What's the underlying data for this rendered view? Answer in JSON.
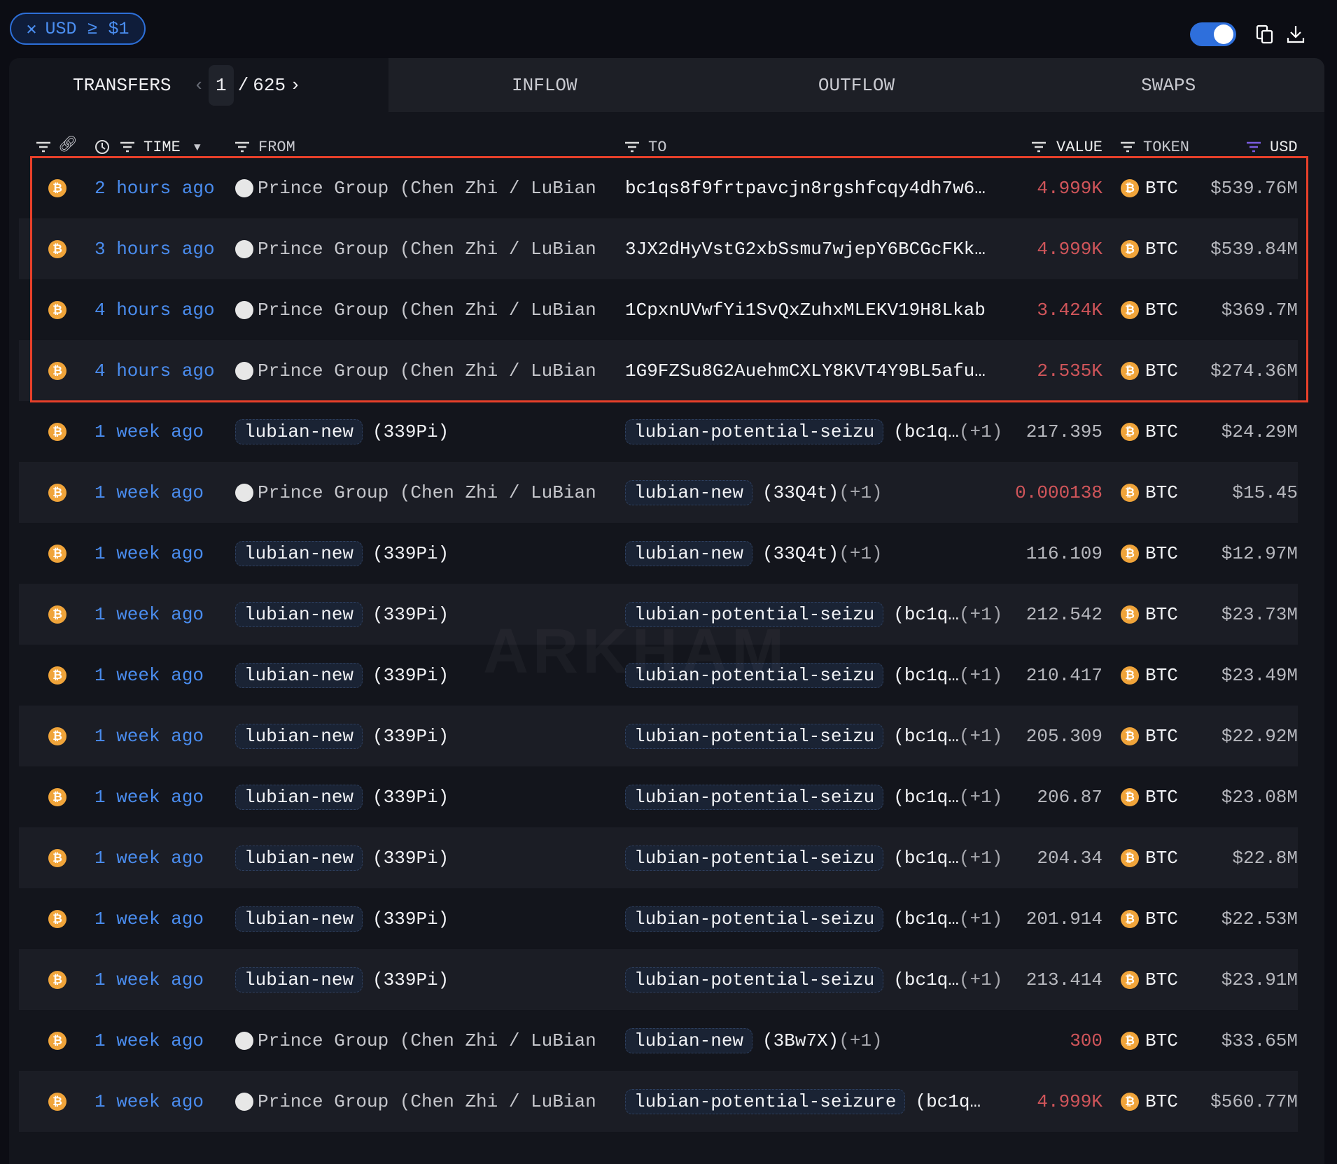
{
  "filter_chip": {
    "close_icon": "x-icon",
    "label": "USD ≥ $1"
  },
  "toolbar": {
    "toggle_on": true,
    "copy_icon": "copy-icon",
    "download_icon": "download-icon"
  },
  "tabs": {
    "transfers": "TRANSFERS",
    "page_current": "1",
    "page_sep": "/",
    "page_total": "625",
    "inflow": "INFLOW",
    "outflow": "OUTFLOW",
    "swaps": "SWAPS"
  },
  "columns": {
    "time": "TIME",
    "from": "FROM",
    "to": "TO",
    "value": "VALUE",
    "token": "TOKEN",
    "usd": "USD"
  },
  "colors": {
    "accent": "#2e6fdc",
    "negative": "#d0555a",
    "highlight_box": "#e8402a",
    "btc": "#f0a43a"
  },
  "watermark": "ARKHAM",
  "rows": [
    {
      "time": "2 hours ago",
      "from": {
        "entity": "Prince Group (Chen Zhi / LuBian",
        "avatar": true
      },
      "to": {
        "address": "bc1qs8f9frtpavcjn8rgshfcqy4dh7w6…"
      },
      "value": "4.999K",
      "value_negative": true,
      "token": "BTC",
      "usd": "$539.76M",
      "highlighted": true
    },
    {
      "time": "3 hours ago",
      "from": {
        "entity": "Prince Group (Chen Zhi / LuBian",
        "avatar": true
      },
      "to": {
        "address": "3JX2dHyVstG2xbSsmu7wjepY6BCGcFKk…"
      },
      "value": "4.999K",
      "value_negative": true,
      "token": "BTC",
      "usd": "$539.84M",
      "highlighted": true
    },
    {
      "time": "4 hours ago",
      "from": {
        "entity": "Prince Group (Chen Zhi / LuBian",
        "avatar": true
      },
      "to": {
        "address": "1CpxnUVwfYi1SvQxZuhxMLEKV19H8Lkab"
      },
      "value": "3.424K",
      "value_negative": true,
      "token": "BTC",
      "usd": "$369.7M",
      "highlighted": true
    },
    {
      "time": "4 hours ago",
      "from": {
        "entity": "Prince Group (Chen Zhi / LuBian",
        "avatar": true
      },
      "to": {
        "address": "1G9FZSu8G2AuehmCXLY8KVT4Y9BL5afu…"
      },
      "value": "2.535K",
      "value_negative": true,
      "token": "BTC",
      "usd": "$274.36M",
      "highlighted": true
    },
    {
      "time": "1 week ago",
      "from": {
        "tag": "lubian-new",
        "suffix": "(339Pi)"
      },
      "to": {
        "tag": "lubian-potential-seizu",
        "suffix": "(bc1q…",
        "plus": "(+1)"
      },
      "value": "217.395",
      "value_negative": false,
      "token": "BTC",
      "usd": "$24.29M"
    },
    {
      "time": "1 week ago",
      "from": {
        "entity": "Prince Group (Chen Zhi / LuBian",
        "avatar": true
      },
      "to": {
        "tag": "lubian-new",
        "suffix": "(33Q4t)",
        "plus": "(+1)"
      },
      "value": "0.000138",
      "value_negative": true,
      "token": "BTC",
      "usd": "$15.45"
    },
    {
      "time": "1 week ago",
      "from": {
        "tag": "lubian-new",
        "suffix": "(339Pi)"
      },
      "to": {
        "tag": "lubian-new",
        "suffix": "(33Q4t)",
        "plus": "(+1)"
      },
      "value": "116.109",
      "value_negative": false,
      "token": "BTC",
      "usd": "$12.97M"
    },
    {
      "time": "1 week ago",
      "from": {
        "tag": "lubian-new",
        "suffix": "(339Pi)"
      },
      "to": {
        "tag": "lubian-potential-seizu",
        "suffix": "(bc1q…",
        "plus": "(+1)"
      },
      "value": "212.542",
      "value_negative": false,
      "token": "BTC",
      "usd": "$23.73M"
    },
    {
      "time": "1 week ago",
      "from": {
        "tag": "lubian-new",
        "suffix": "(339Pi)"
      },
      "to": {
        "tag": "lubian-potential-seizu",
        "suffix": "(bc1q…",
        "plus": "(+1)"
      },
      "value": "210.417",
      "value_negative": false,
      "token": "BTC",
      "usd": "$23.49M"
    },
    {
      "time": "1 week ago",
      "from": {
        "tag": "lubian-new",
        "suffix": "(339Pi)"
      },
      "to": {
        "tag": "lubian-potential-seizu",
        "suffix": "(bc1q…",
        "plus": "(+1)"
      },
      "value": "205.309",
      "value_negative": false,
      "token": "BTC",
      "usd": "$22.92M"
    },
    {
      "time": "1 week ago",
      "from": {
        "tag": "lubian-new",
        "suffix": "(339Pi)"
      },
      "to": {
        "tag": "lubian-potential-seizu",
        "suffix": "(bc1q…",
        "plus": "(+1)"
      },
      "value": "206.87",
      "value_negative": false,
      "token": "BTC",
      "usd": "$23.08M"
    },
    {
      "time": "1 week ago",
      "from": {
        "tag": "lubian-new",
        "suffix": "(339Pi)"
      },
      "to": {
        "tag": "lubian-potential-seizu",
        "suffix": "(bc1q…",
        "plus": "(+1)"
      },
      "value": "204.34",
      "value_negative": false,
      "token": "BTC",
      "usd": "$22.8M"
    },
    {
      "time": "1 week ago",
      "from": {
        "tag": "lubian-new",
        "suffix": "(339Pi)"
      },
      "to": {
        "tag": "lubian-potential-seizu",
        "suffix": "(bc1q…",
        "plus": "(+1)"
      },
      "value": "201.914",
      "value_negative": false,
      "token": "BTC",
      "usd": "$22.53M"
    },
    {
      "time": "1 week ago",
      "from": {
        "tag": "lubian-new",
        "suffix": "(339Pi)"
      },
      "to": {
        "tag": "lubian-potential-seizu",
        "suffix": "(bc1q…",
        "plus": "(+1)"
      },
      "value": "213.414",
      "value_negative": false,
      "token": "BTC",
      "usd": "$23.91M"
    },
    {
      "time": "1 week ago",
      "from": {
        "entity": "Prince Group (Chen Zhi / LuBian",
        "avatar": true
      },
      "to": {
        "tag": "lubian-new",
        "suffix": "(3Bw7X)",
        "plus": "(+1)"
      },
      "value": "300",
      "value_negative": true,
      "token": "BTC",
      "usd": "$33.65M"
    },
    {
      "time": "1 week ago",
      "from": {
        "entity": "Prince Group (Chen Zhi / LuBian",
        "avatar": true
      },
      "to": {
        "tag": "lubian-potential-seizure",
        "suffix": "(bc1q…"
      },
      "value": "4.999K",
      "value_negative": true,
      "token": "BTC",
      "usd": "$560.77M"
    }
  ]
}
